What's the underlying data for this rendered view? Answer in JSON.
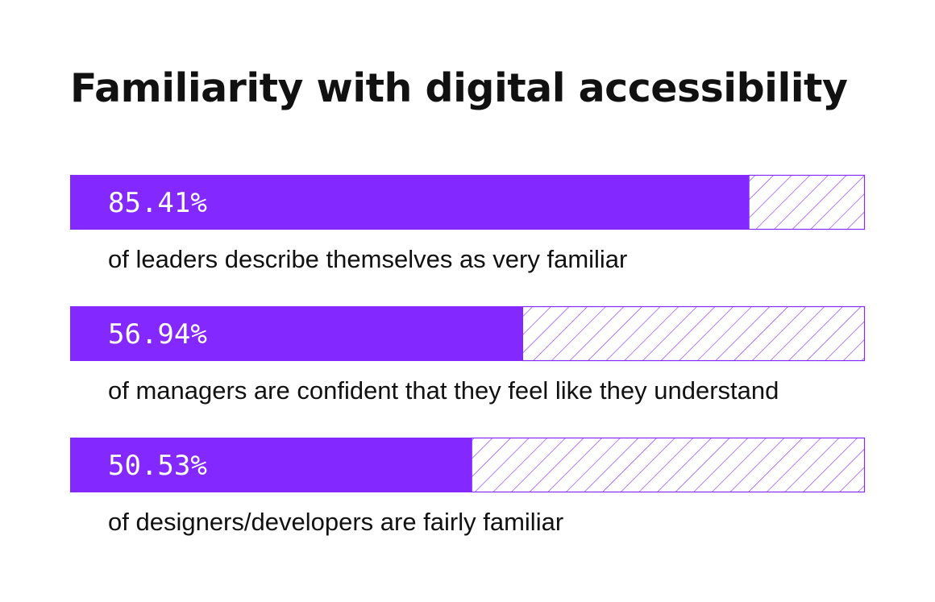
{
  "chart_data": {
    "type": "bar",
    "orientation": "horizontal",
    "title": "Familiarity with digital accessibility",
    "xlim": [
      0,
      100
    ],
    "unit": "%",
    "bars": [
      {
        "value": 85.41,
        "label": "85.41%",
        "description": "of leaders describe themselves as very familiar"
      },
      {
        "value": 56.94,
        "label": "56.94%",
        "description": "of managers are confident that they feel like they understand"
      },
      {
        "value": 50.53,
        "label": "50.53%",
        "description": "of designers/developers are fairly familiar"
      }
    ],
    "colors": {
      "fill": "#8329ff",
      "remainder_hatch": "#8329ff",
      "text_on_bar": "#ffffff",
      "text": "#111111"
    }
  }
}
